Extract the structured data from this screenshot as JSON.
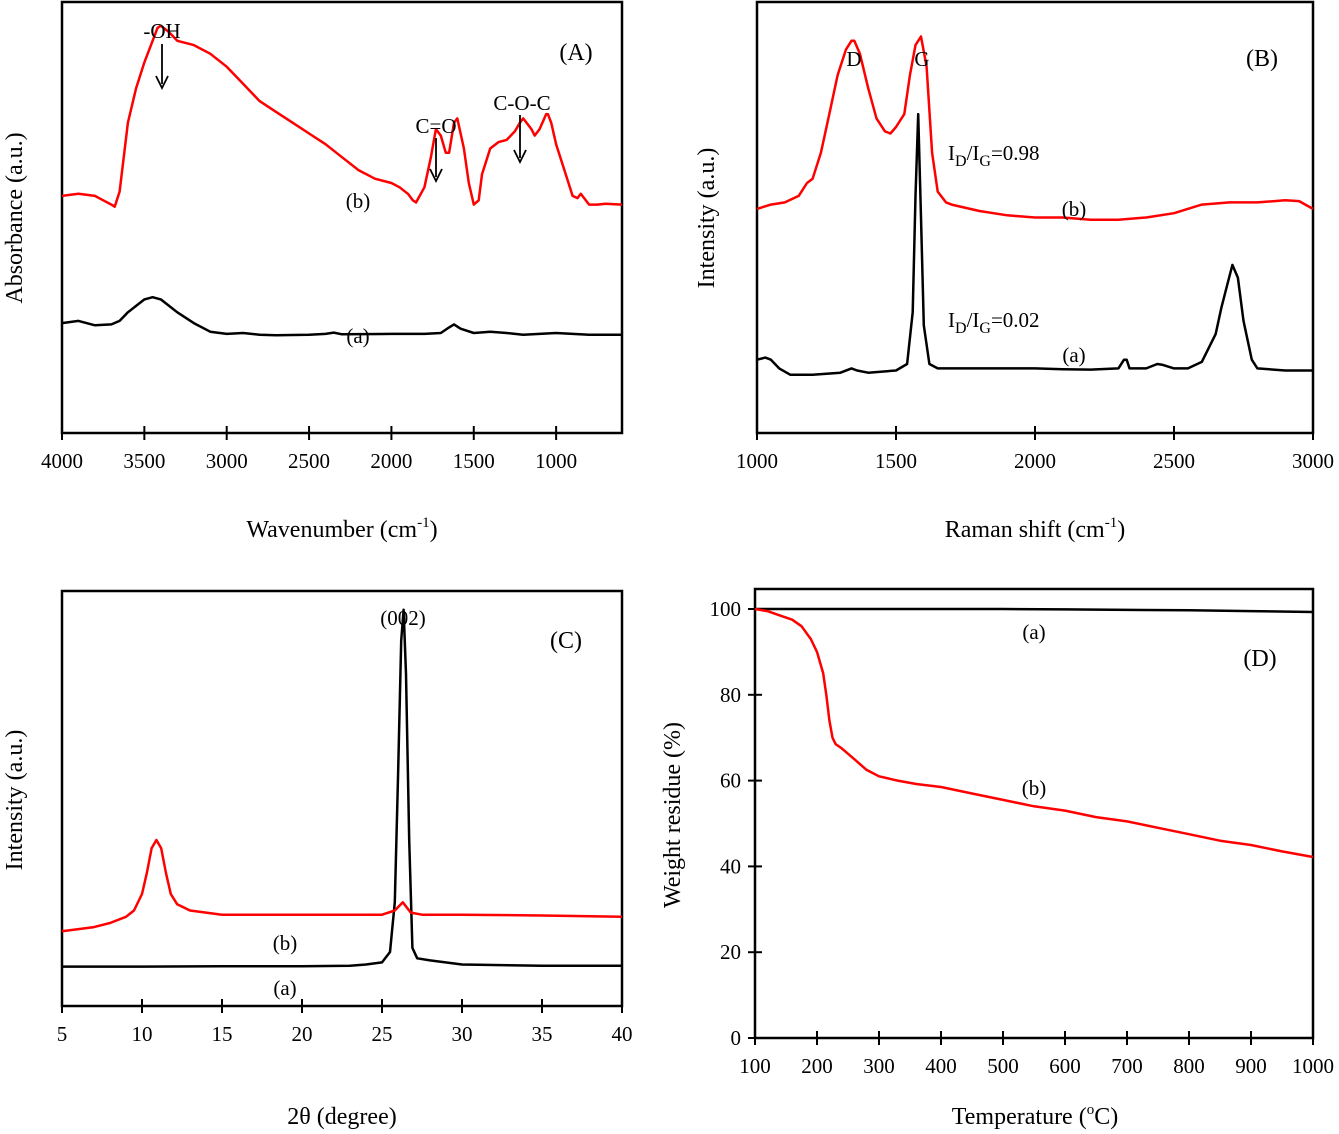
{
  "chart_data": [
    {
      "id": "A",
      "type": "line",
      "panel_label": "(A)",
      "title": "",
      "xlabel": "Wavenumber (cm",
      "xlabel_sup": "-1",
      "xlabel_end": ")",
      "ylabel": "Absorbance (a.u.)",
      "xlim": [
        4000,
        600
      ],
      "x_reversed": true,
      "ylim": [
        0,
        10
      ],
      "xticks": [
        4000,
        3500,
        3000,
        2500,
        2000,
        1500,
        1000
      ],
      "yticks": [],
      "grid": false,
      "series": [
        {
          "name": "(a)",
          "color": "#000000",
          "x": [
            4000,
            3900,
            3800,
            3700,
            3650,
            3600,
            3550,
            3500,
            3450,
            3400,
            3350,
            3300,
            3200,
            3100,
            3000,
            2900,
            2800,
            2700,
            2500,
            2400,
            2350,
            2300,
            2000,
            1800,
            1700,
            1650,
            1620,
            1580,
            1500,
            1400,
            1300,
            1200,
            1100,
            1000,
            900,
            800,
            600
          ],
          "y": [
            2.55,
            2.6,
            2.5,
            2.52,
            2.6,
            2.8,
            2.95,
            3.1,
            3.15,
            3.1,
            2.95,
            2.8,
            2.55,
            2.35,
            2.3,
            2.32,
            2.28,
            2.27,
            2.28,
            2.3,
            2.33,
            2.29,
            2.3,
            2.3,
            2.32,
            2.45,
            2.52,
            2.42,
            2.32,
            2.35,
            2.32,
            2.28,
            2.3,
            2.32,
            2.3,
            2.28,
            2.28
          ]
        },
        {
          "name": "(b)",
          "color": "#ff0000",
          "x": [
            4000,
            3900,
            3800,
            3750,
            3700,
            3680,
            3650,
            3600,
            3550,
            3500,
            3450,
            3420,
            3400,
            3350,
            3300,
            3250,
            3200,
            3100,
            3000,
            2900,
            2800,
            2700,
            2600,
            2500,
            2400,
            2300,
            2200,
            2100,
            2000,
            1950,
            1900,
            1870,
            1850,
            1800,
            1760,
            1730,
            1700,
            1670,
            1650,
            1620,
            1600,
            1560,
            1530,
            1500,
            1470,
            1450,
            1400,
            1350,
            1300,
            1250,
            1220,
            1200,
            1150,
            1130,
            1100,
            1060,
            1050,
            1030,
            1000,
            950,
            900,
            870,
            850,
            800,
            750,
            700,
            600
          ],
          "y": [
            5.5,
            5.55,
            5.5,
            5.4,
            5.3,
            5.25,
            5.6,
            7.2,
            8.0,
            8.6,
            9.1,
            9.4,
            9.45,
            9.3,
            9.1,
            9.05,
            9.0,
            8.8,
            8.5,
            8.1,
            7.7,
            7.45,
            7.2,
            6.95,
            6.7,
            6.4,
            6.1,
            5.9,
            5.8,
            5.7,
            5.55,
            5.4,
            5.35,
            5.7,
            6.4,
            7.05,
            6.9,
            6.5,
            6.5,
            7.2,
            7.3,
            6.6,
            5.8,
            5.3,
            5.4,
            6.0,
            6.6,
            6.75,
            6.8,
            7.0,
            7.2,
            7.3,
            7.05,
            6.9,
            7.05,
            7.4,
            7.4,
            7.2,
            6.7,
            6.1,
            5.5,
            5.45,
            5.55,
            5.3,
            5.3,
            5.32,
            5.3
          ]
        }
      ],
      "annotations": [
        {
          "text": "-OH",
          "x": 3420
        },
        {
          "text": "C=O",
          "x": 1730
        },
        {
          "text": "C-O-C",
          "x": 1220
        },
        {
          "text": "(b)",
          "x": 2200
        },
        {
          "text": "(a)",
          "x": 2200
        }
      ]
    },
    {
      "id": "B",
      "type": "line",
      "panel_label": "(B)",
      "title": "",
      "xlabel": "Raman shift (cm",
      "xlabel_sup": "-1",
      "xlabel_end": ")",
      "ylabel": "Intensity (a.u.)",
      "xlim": [
        1000,
        3000
      ],
      "ylim": [
        0,
        10
      ],
      "xticks": [
        1000,
        1500,
        2000,
        2500,
        3000
      ],
      "yticks": [],
      "grid": false,
      "series": [
        {
          "name": "(a)",
          "color": "#000000",
          "x": [
            1000,
            1030,
            1050,
            1080,
            1120,
            1200,
            1300,
            1340,
            1360,
            1400,
            1500,
            1540,
            1560,
            1570,
            1580,
            1590,
            1600,
            1620,
            1650,
            1700,
            1800,
            1900,
            2000,
            2100,
            2200,
            2300,
            2320,
            2330,
            2340,
            2400,
            2440,
            2460,
            2500,
            2550,
            2600,
            2650,
            2670,
            2690,
            2710,
            2730,
            2750,
            2780,
            2800,
            2900,
            3000
          ],
          "y": [
            1.7,
            1.75,
            1.7,
            1.5,
            1.35,
            1.35,
            1.4,
            1.5,
            1.45,
            1.4,
            1.45,
            1.6,
            2.8,
            5.5,
            7.4,
            5.0,
            2.5,
            1.6,
            1.5,
            1.5,
            1.5,
            1.5,
            1.5,
            1.48,
            1.47,
            1.5,
            1.7,
            1.7,
            1.5,
            1.5,
            1.6,
            1.58,
            1.5,
            1.5,
            1.65,
            2.3,
            2.9,
            3.4,
            3.9,
            3.6,
            2.6,
            1.7,
            1.5,
            1.45,
            1.45
          ]
        },
        {
          "name": "(b)",
          "color": "#ff0000",
          "x": [
            1000,
            1050,
            1100,
            1150,
            1180,
            1200,
            1230,
            1260,
            1290,
            1320,
            1340,
            1350,
            1370,
            1400,
            1430,
            1460,
            1480,
            1500,
            1530,
            1550,
            1570,
            1590,
            1610,
            1630,
            1650,
            1680,
            1700,
            1800,
            1900,
            2000,
            2100,
            2200,
            2300,
            2400,
            2500,
            2600,
            2700,
            2800,
            2900,
            2950,
            3000
          ],
          "y": [
            5.2,
            5.3,
            5.35,
            5.5,
            5.8,
            5.9,
            6.5,
            7.4,
            8.3,
            8.9,
            9.1,
            9.1,
            8.8,
            8.0,
            7.3,
            7.0,
            6.95,
            7.1,
            7.4,
            8.3,
            9.0,
            9.2,
            8.5,
            6.5,
            5.6,
            5.35,
            5.3,
            5.15,
            5.05,
            5.0,
            5.0,
            4.95,
            4.95,
            5.0,
            5.1,
            5.3,
            5.35,
            5.35,
            5.4,
            5.38,
            5.2
          ]
        }
      ],
      "annotations": [
        {
          "text": "D",
          "x": 1350
        },
        {
          "text": "G",
          "x": 1590
        },
        {
          "text_main": "I",
          "sub1": "D",
          "slash": "/I",
          "sub2": "G",
          "value": "=0.98",
          "series": "(b)"
        },
        {
          "text_main": "I",
          "sub1": "D",
          "slash": "/I",
          "sub2": "G",
          "value": "=0.02",
          "series": "(a)"
        },
        {
          "text": "(b)",
          "x": 2050
        },
        {
          "text": "(a)",
          "x": 2050
        }
      ]
    },
    {
      "id": "C",
      "type": "line",
      "panel_label": "(C)",
      "title": "",
      "xlabel": "2θ (degree)",
      "ylabel": "Intensity (a.u.)",
      "xlim": [
        5,
        40
      ],
      "ylim": [
        0,
        10
      ],
      "xticks": [
        5,
        10,
        15,
        20,
        25,
        30,
        35,
        40
      ],
      "yticks": [],
      "grid": false,
      "series": [
        {
          "name": "(a)",
          "color": "#000000",
          "x": [
            5,
            10,
            15,
            20,
            23,
            24,
            25,
            25.5,
            25.8,
            26.0,
            26.2,
            26.35,
            26.5,
            26.7,
            26.9,
            27.2,
            28,
            30,
            35,
            40
          ],
          "y": [
            0.95,
            0.95,
            0.96,
            0.96,
            0.97,
            1.0,
            1.05,
            1.3,
            2.5,
            5.5,
            8.8,
            9.55,
            8.0,
            4.0,
            1.4,
            1.15,
            1.1,
            1.0,
            0.97,
            0.97
          ]
        },
        {
          "name": "(b)",
          "color": "#ff0000",
          "x": [
            5,
            7,
            8,
            9,
            9.5,
            10,
            10.3,
            10.6,
            10.9,
            11.2,
            11.5,
            11.8,
            12.2,
            13,
            14,
            15,
            20,
            25,
            25.8,
            26.3,
            26.8,
            27.5,
            30,
            35,
            40
          ],
          "y": [
            1.8,
            1.9,
            2.0,
            2.15,
            2.3,
            2.7,
            3.2,
            3.8,
            4.0,
            3.8,
            3.2,
            2.7,
            2.45,
            2.3,
            2.25,
            2.2,
            2.2,
            2.2,
            2.3,
            2.5,
            2.25,
            2.2,
            2.2,
            2.18,
            2.15
          ]
        }
      ],
      "annotations": [
        {
          "text": "(002)",
          "x": 26.3
        },
        {
          "text": "(b)",
          "x": 19.5
        },
        {
          "text": "(a)",
          "x": 19.5
        }
      ]
    },
    {
      "id": "D",
      "type": "line",
      "panel_label": "(D)",
      "title": "",
      "xlabel": "Temperature (",
      "xlabel_sup": "o",
      "xlabel_end": "C)",
      "ylabel": "Weight residue (%)",
      "xlim": [
        100,
        1000
      ],
      "ylim": [
        0,
        105
      ],
      "xticks": [
        100,
        200,
        300,
        400,
        500,
        600,
        700,
        800,
        900,
        1000
      ],
      "yticks": [
        0,
        20,
        40,
        60,
        80,
        100
      ],
      "grid": false,
      "series": [
        {
          "name": "(a)",
          "color": "#000000",
          "x": [
            100,
            200,
            300,
            400,
            500,
            600,
            700,
            800,
            900,
            1000
          ],
          "y": [
            100,
            100,
            100,
            100,
            100,
            99.9,
            99.8,
            99.7,
            99.5,
            99.3
          ]
        },
        {
          "name": "(b)",
          "color": "#ff0000",
          "x": [
            100,
            120,
            140,
            160,
            175,
            190,
            200,
            210,
            215,
            220,
            225,
            230,
            240,
            260,
            280,
            300,
            330,
            360,
            400,
            450,
            500,
            550,
            600,
            650,
            700,
            750,
            800,
            850,
            900,
            950,
            1000
          ],
          "y": [
            100,
            99.5,
            98.5,
            97.5,
            96,
            93,
            90,
            85,
            80,
            74,
            70,
            68.5,
            67.5,
            65,
            62.5,
            61,
            60,
            59.2,
            58.5,
            57,
            55.5,
            54,
            53,
            51.5,
            50.5,
            49,
            47.5,
            46,
            45,
            43.5,
            42.2
          ]
        }
      ],
      "annotations": [
        {
          "text": "(a)",
          "x": 535
        },
        {
          "text": "(b)",
          "x": 535
        }
      ]
    }
  ]
}
